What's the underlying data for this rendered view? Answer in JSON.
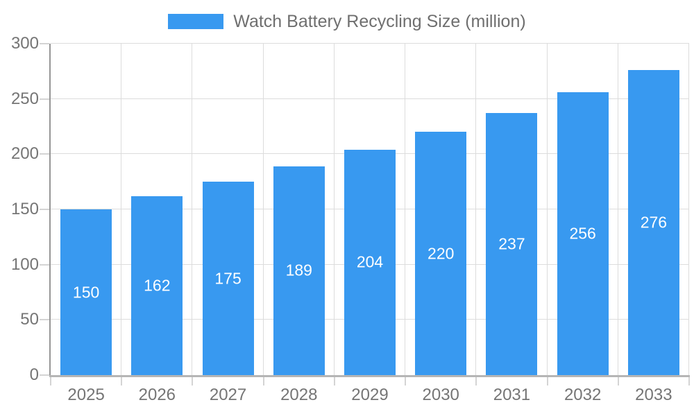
{
  "chart_data": {
    "type": "bar",
    "title": "Watch Battery Recycling Size (million)",
    "categories": [
      "2025",
      "2026",
      "2027",
      "2028",
      "2029",
      "2030",
      "2031",
      "2032",
      "2033"
    ],
    "values": [
      150,
      162,
      175,
      189,
      204,
      220,
      237,
      256,
      276
    ],
    "xlabel": "",
    "ylabel": "",
    "ylim": [
      0,
      300
    ],
    "y_ticks": [
      0,
      50,
      100,
      150,
      200,
      250,
      300
    ],
    "grid": true,
    "legend_position": "top",
    "value_labels_position": "center-inside",
    "colors": {
      "bar": "#3899F0",
      "value_label": "#FFFFFF",
      "title_text": "#6F6F6F",
      "axis_label_text": "#757575",
      "gridline": "#DCDCDC",
      "tick": "#D4D4D4",
      "y_axis_line": "#969696",
      "x_axis_line": "#B5B5B5",
      "background": "#FFFFFF"
    }
  }
}
